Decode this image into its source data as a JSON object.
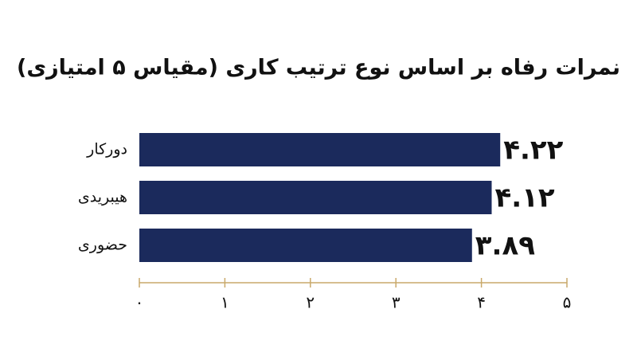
{
  "chart_data": {
    "type": "hbar",
    "title": "نمرات رفاه بر اساس نوع ترتیب کاری (مقیاس ۵ امتیازی)",
    "categories": [
      "دورکار",
      "هیبریدی",
      "حضوری"
    ],
    "values": [
      4.22,
      4.12,
      3.89
    ],
    "value_labels": [
      "۴.۲۲",
      "۴.۱۲",
      "۳.۸۹"
    ],
    "color": "#1b2a5c",
    "label_color": "#e3a03c",
    "xlim": [
      0,
      5
    ],
    "xticks": [
      {
        "value": 0,
        "label": "۰"
      },
      {
        "value": 1,
        "label": "۱"
      },
      {
        "value": 2,
        "label": "۲"
      },
      {
        "value": 3,
        "label": "۳"
      },
      {
        "value": 4,
        "label": "۴"
      },
      {
        "value": 5,
        "label": "۵"
      }
    ],
    "grid": false
  }
}
